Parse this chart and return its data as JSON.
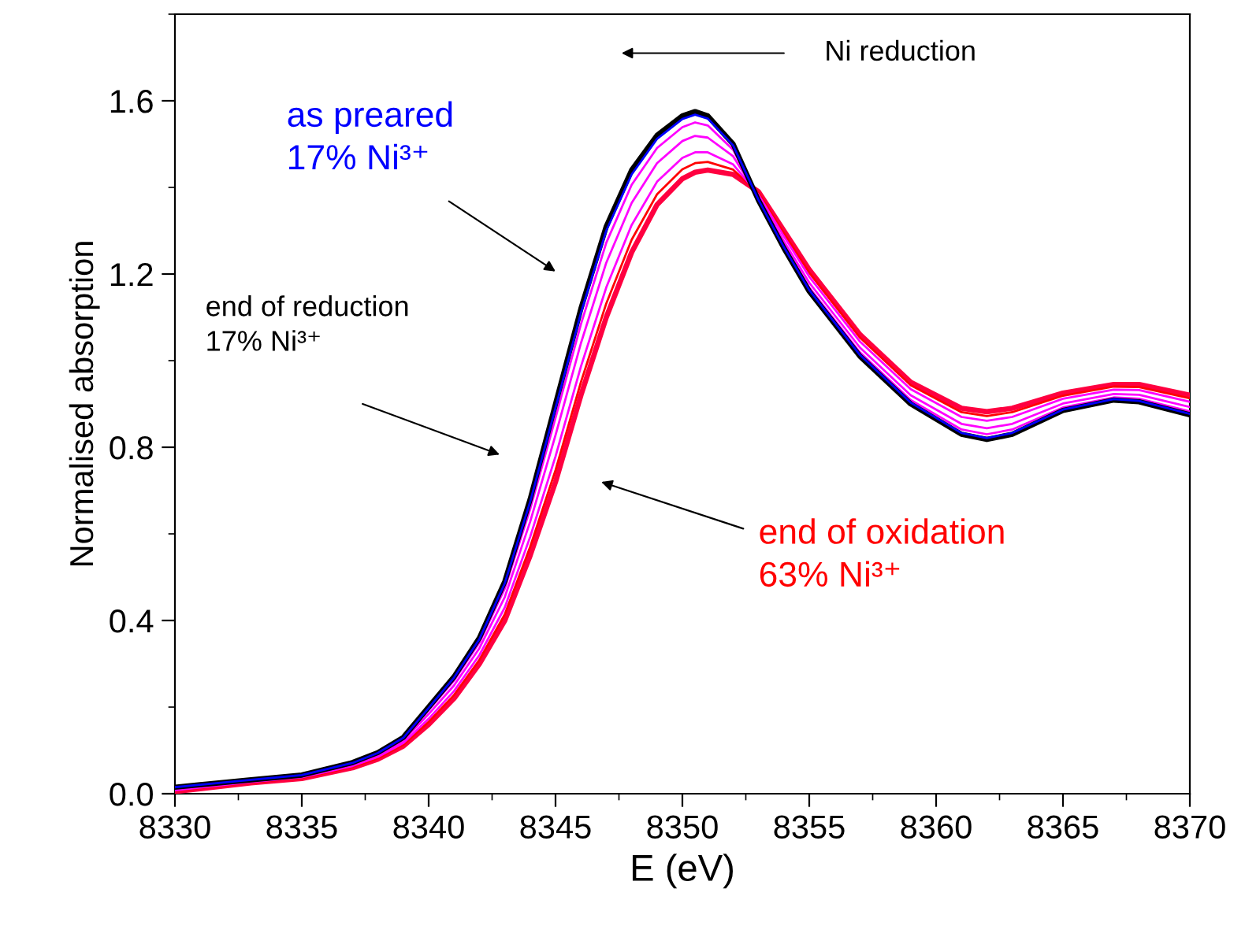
{
  "chart_data": {
    "type": "line",
    "xlabel": "E (eV)",
    "ylabel": "Normalised absorption",
    "x": [
      8330,
      8333,
      8335,
      8337,
      8338,
      8339,
      8340,
      8341,
      8342,
      8343,
      8344,
      8345,
      8346,
      8347,
      8348,
      8349,
      8350,
      8350.5,
      8351,
      8352,
      8353,
      8354,
      8355,
      8357,
      8359,
      8361,
      8362,
      8363,
      8365,
      8367,
      8368,
      8370
    ],
    "series": [
      {
        "color": "#000000",
        "values": [
          0.015,
          0.032,
          0.043,
          0.072,
          0.095,
          0.13,
          0.2,
          0.27,
          0.36,
          0.49,
          0.68,
          0.9,
          1.12,
          1.31,
          1.44,
          1.52,
          1.565,
          1.575,
          1.565,
          1.5,
          1.37,
          1.26,
          1.16,
          1.01,
          0.9,
          0.83,
          0.818,
          0.83,
          0.885,
          0.909,
          0.905,
          0.875
        ]
      },
      {
        "color": "#0000ff",
        "values": [
          0.015,
          0.032,
          0.043,
          0.071,
          0.094,
          0.129,
          0.198,
          0.268,
          0.357,
          0.486,
          0.674,
          0.891,
          1.11,
          1.3,
          1.43,
          1.512,
          1.558,
          1.568,
          1.559,
          1.497,
          1.371,
          1.262,
          1.163,
          1.013,
          0.903,
          0.833,
          0.821,
          0.833,
          0.887,
          0.911,
          0.907,
          0.877
        ]
      },
      {
        "color": "#ff00ff",
        "values": [
          0.013,
          0.031,
          0.042,
          0.07,
          0.092,
          0.126,
          0.193,
          0.261,
          0.349,
          0.474,
          0.657,
          0.868,
          1.084,
          1.272,
          1.406,
          1.491,
          1.539,
          1.55,
          1.543,
          1.487,
          1.374,
          1.267,
          1.169,
          1.019,
          0.909,
          0.841,
          0.83,
          0.841,
          0.892,
          0.915,
          0.912,
          0.883
        ]
      },
      {
        "color": "#ff00ff",
        "values": [
          0.011,
          0.029,
          0.04,
          0.067,
          0.089,
          0.122,
          0.184,
          0.25,
          0.336,
          0.454,
          0.628,
          0.828,
          1.04,
          1.226,
          1.364,
          1.456,
          1.507,
          1.519,
          1.515,
          1.472,
          1.378,
          1.276,
          1.18,
          1.03,
          0.92,
          0.854,
          0.844,
          0.854,
          0.901,
          0.923,
          0.921,
          0.893
        ]
      },
      {
        "color": "#ff00ff",
        "values": [
          0.008,
          0.027,
          0.038,
          0.064,
          0.085,
          0.117,
          0.173,
          0.237,
          0.32,
          0.43,
          0.593,
          0.779,
          0.986,
          1.169,
          1.313,
          1.413,
          1.468,
          1.481,
          1.481,
          1.453,
          1.383,
          1.287,
          1.194,
          1.044,
          0.934,
          0.87,
          0.861,
          0.87,
          0.912,
          0.933,
          0.932,
          0.905
        ]
      },
      {
        "color": "#ff0000",
        "values": [
          0.007,
          0.026,
          0.036,
          0.062,
          0.082,
          0.113,
          0.166,
          0.228,
          0.309,
          0.414,
          0.57,
          0.747,
          0.95,
          1.132,
          1.279,
          1.384,
          1.442,
          1.456,
          1.459,
          1.441,
          1.387,
          1.294,
          1.203,
          1.053,
          0.943,
          0.881,
          0.872,
          0.881,
          0.919,
          0.94,
          0.939,
          0.913
        ]
      },
      {
        "color": "#ff0040",
        "values": [
          0.005,
          0.025,
          0.035,
          0.06,
          0.08,
          0.11,
          0.16,
          0.22,
          0.3,
          0.4,
          0.55,
          0.72,
          0.92,
          1.1,
          1.25,
          1.36,
          1.42,
          1.435,
          1.44,
          1.43,
          1.39,
          1.3,
          1.21,
          1.06,
          0.95,
          0.89,
          0.882,
          0.89,
          0.925,
          0.945,
          0.945,
          0.92
        ]
      }
    ],
    "xlim": [
      8330,
      8370
    ],
    "xticks": [
      8330,
      8335,
      8340,
      8345,
      8350,
      8355,
      8360,
      8365,
      8370
    ],
    "ylim": [
      0,
      1.8
    ],
    "yticks": [
      {
        "value": 0,
        "label": "0.0"
      },
      0.4,
      0.8,
      1.2,
      1.6
    ],
    "grid": false,
    "legend": false,
    "marker": "none",
    "line_style": "solid",
    "annotations": [
      "Ni reduction",
      "as preared\n17% Ni³⁺",
      "end of reduction\n17% Ni³⁺",
      "end of oxidation\n63% Ni³⁺"
    ]
  }
}
